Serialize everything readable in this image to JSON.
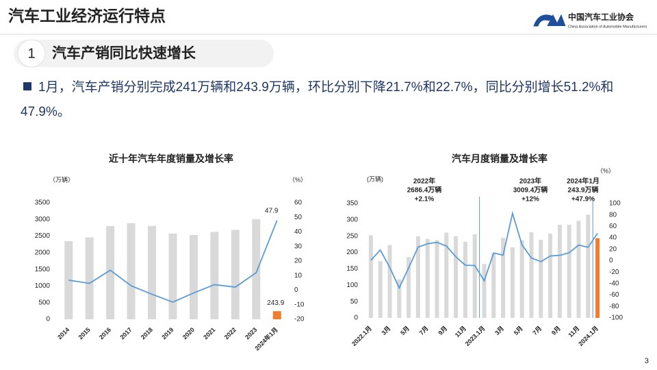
{
  "header": {
    "title": "汽车工业经济运行特点",
    "logo_name": "中国汽车工业协会",
    "logo_subtitle": "China Association of Automobile Manufacturers"
  },
  "section": {
    "number": "1",
    "title": "汽车产销同比快速增长"
  },
  "bullet": "1月，汽车产销分别完成241万辆和243.9万辆，环比分别下降21.7%和22.7%，同比分别增长51.2%和47.9%。",
  "page_number": "3",
  "chart_data": [
    {
      "type": "bar",
      "title": "近十年汽车年度销量及增长率",
      "y_unit": "（万辆）",
      "y2_unit": "（%）",
      "categories": [
        "2014",
        "2015",
        "2016",
        "2017",
        "2018",
        "2019",
        "2020",
        "2021",
        "2022",
        "2023",
        "2024年1月"
      ],
      "series": [
        {
          "name": "销量",
          "colors": [
            "#d9d9d9",
            "#d9d9d9",
            "#d9d9d9",
            "#d9d9d9",
            "#d9d9d9",
            "#d9d9d9",
            "#d9d9d9",
            "#d9d9d9",
            "#d9d9d9",
            "#d9d9d9",
            "#ed7d31"
          ],
          "values": [
            2349,
            2460,
            2803,
            2888,
            2808,
            2577,
            2531,
            2627,
            2686,
            3009,
            243.9
          ],
          "value_labels": [
            null,
            null,
            null,
            null,
            null,
            null,
            null,
            null,
            null,
            null,
            "243.9"
          ]
        },
        {
          "name": "增长率",
          "type": "line",
          "axis": "y2",
          "color": "#5b9bd5",
          "values": [
            6.9,
            4.7,
            13.7,
            3.0,
            -2.8,
            -8.2,
            -1.9,
            3.8,
            2.1,
            12,
            47.9
          ],
          "value_labels": [
            null,
            null,
            null,
            null,
            null,
            null,
            null,
            null,
            null,
            null,
            "47.9"
          ]
        }
      ],
      "ylim": [
        0,
        3500
      ],
      "yticks": [
        0,
        500,
        1000,
        1500,
        2000,
        2500,
        3000,
        3500
      ],
      "y2lim": [
        -20,
        60
      ],
      "y2ticks": [
        -20,
        -10,
        0,
        10,
        20,
        30,
        40,
        50,
        60
      ]
    },
    {
      "type": "bar",
      "title": "汽车月度销量及增长率",
      "y_unit": "(万辆)",
      "y2_unit": "（%）",
      "categories": [
        "2022.1月",
        null,
        "3月",
        null,
        "5月",
        null,
        "7月",
        null,
        "9月",
        null,
        "11月",
        null,
        "2023.1月",
        null,
        "3月",
        null,
        "5月",
        null,
        "7月",
        null,
        "9月",
        null,
        "11月",
        null,
        "2024.1月"
      ],
      "series": [
        {
          "name": "销量",
          "colors": [
            "#d9d9d9",
            "#d9d9d9",
            "#d9d9d9",
            "#d9d9d9",
            "#d9d9d9",
            "#d9d9d9",
            "#d9d9d9",
            "#d9d9d9",
            "#d9d9d9",
            "#d9d9d9",
            "#d9d9d9",
            "#d9d9d9",
            "#d9d9d9",
            "#d9d9d9",
            "#d9d9d9",
            "#d9d9d9",
            "#d9d9d9",
            "#d9d9d9",
            "#d9d9d9",
            "#d9d9d9",
            "#d9d9d9",
            "#d9d9d9",
            "#d9d9d9",
            "#d9d9d9",
            "#ed7d31"
          ],
          "values": [
            253,
            174,
            223,
            118,
            186,
            250,
            242,
            238,
            261,
            250,
            233,
            256,
            165,
            198,
            245,
            216,
            238,
            262,
            239,
            258,
            285,
            285,
            297,
            316,
            243.9
          ]
        },
        {
          "name": "增长率",
          "type": "line",
          "axis": "y2",
          "color": "#5b9bd5",
          "values": [
            0.9,
            18.7,
            -11.7,
            -47.6,
            -12.6,
            23.8,
            29.7,
            32.1,
            25.7,
            6.9,
            -7.9,
            -8.4,
            -35,
            13.5,
            9.7,
            82.7,
            27.9,
            4.8,
            -1.7,
            8.2,
            9.5,
            13.8,
            27.4,
            23.5,
            47.9
          ]
        }
      ],
      "ylim": [
        0,
        350
      ],
      "yticks": [
        0,
        50,
        100,
        150,
        200,
        250,
        300,
        350
      ],
      "y2lim": [
        -100,
        100
      ],
      "y2ticks": [
        -100,
        -80,
        -60,
        -40,
        -20,
        0,
        20,
        40,
        60,
        80,
        100
      ],
      "annotations": [
        {
          "lines": [
            "2022年",
            "2686.4万辆",
            "+2.1%"
          ]
        },
        {
          "lines": [
            "2023年",
            "3009.4万辆",
            "+12%"
          ]
        },
        {
          "lines": [
            "2024年1月",
            "243.9万辆",
            "+47.9%"
          ]
        }
      ]
    }
  ]
}
